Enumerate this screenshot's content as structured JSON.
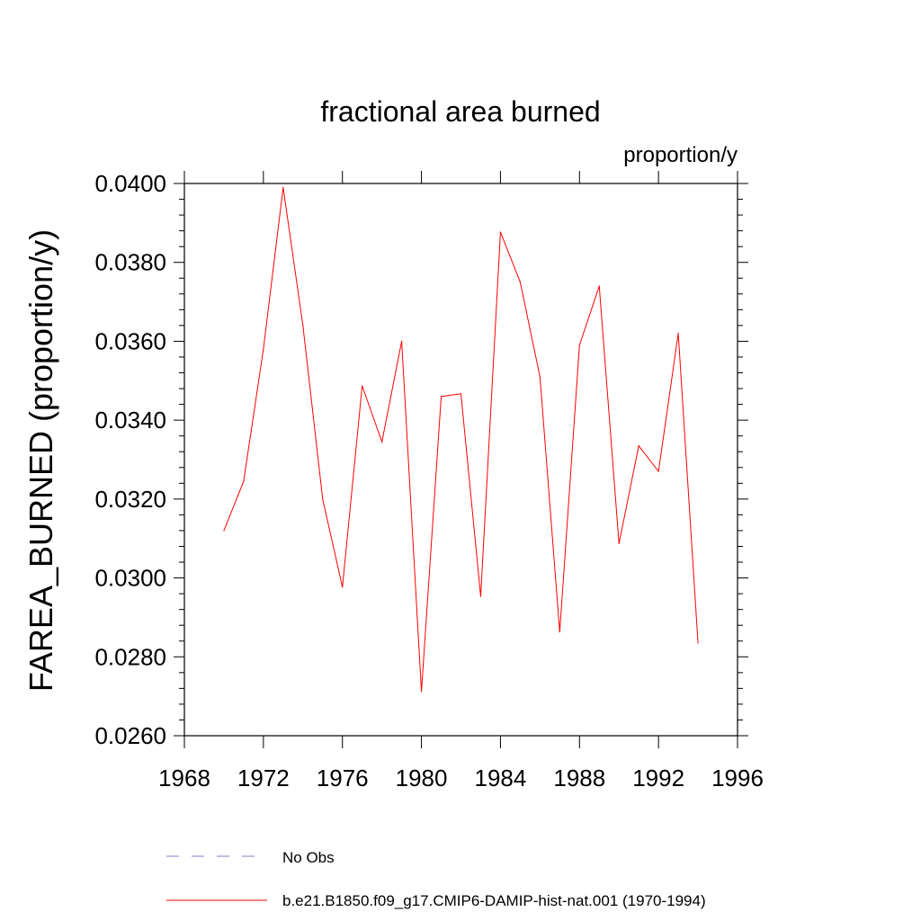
{
  "chart_data": {
    "type": "line",
    "title": "fractional area burned",
    "units_label": "proportion/y",
    "ylabel": "FAREA_BURNED  (proportion/y)",
    "xlabel": "",
    "xlim": [
      1968,
      1996
    ],
    "ylim": [
      0.026,
      0.04
    ],
    "x_ticks": [
      "1968",
      "1972",
      "1976",
      "1980",
      "1984",
      "1988",
      "1992",
      "1996"
    ],
    "y_ticks": [
      "0.0260",
      "0.0280",
      "0.0300",
      "0.0320",
      "0.0340",
      "0.0360",
      "0.0380",
      "0.0400"
    ],
    "grid": false,
    "legend_position": "bottom",
    "series": [
      {
        "name": "b.e21.B1850.f09_g17.CMIP6-DAMIP-hist-nat.001 (1970-1994)",
        "color": "#ff0000",
        "style": "solid",
        "x": [
          1970,
          1971,
          1972,
          1973,
          1974,
          1975,
          1976,
          1977,
          1978,
          1979,
          1980,
          1981,
          1982,
          1983,
          1984,
          1985,
          1986,
          1987,
          1988,
          1989,
          1990,
          1991,
          1992,
          1993,
          1994
        ],
        "y": [
          0.0312,
          0.03245,
          0.0358,
          0.0399,
          0.0364,
          0.032,
          0.02977,
          0.03487,
          0.03345,
          0.036,
          0.02712,
          0.0346,
          0.03467,
          0.02953,
          0.03877,
          0.0375,
          0.0351,
          0.02863,
          0.0359,
          0.0374,
          0.03087,
          0.03335,
          0.0327,
          0.0362,
          0.02835
        ]
      }
    ],
    "legend": [
      {
        "label": "No Obs",
        "color": "#8080c0",
        "style": "dashed"
      },
      {
        "label": "b.e21.B1850.f09_g17.CMIP6-DAMIP-hist-nat.001 (1970-1994)",
        "color": "#ff0000",
        "style": "solid"
      }
    ]
  }
}
